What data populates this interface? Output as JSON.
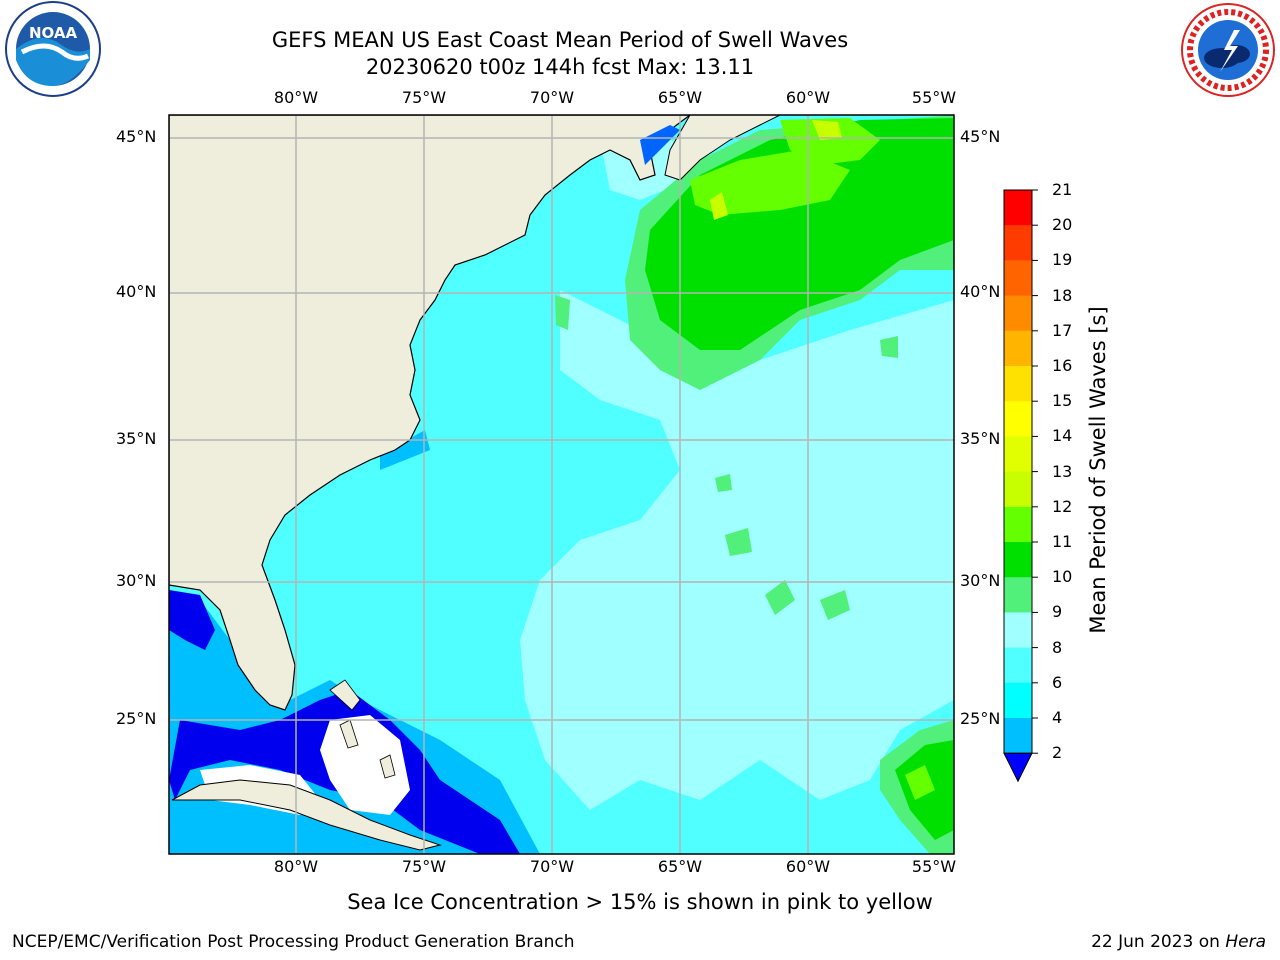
{
  "title_line1": "GEFS MEAN US East Coast Mean Period of Swell Waves",
  "title_line2": "20230620 t00z 144h fcst   Max: 13.11",
  "lon_labels": [
    "80°W",
    "75°W",
    "70°W",
    "65°W",
    "60°W",
    "55°W"
  ],
  "lat_labels": [
    "45°N",
    "40°N",
    "35°N",
    "30°N",
    "25°N"
  ],
  "colorbar": {
    "title": "Mean Period of Swell Waves [s]",
    "ticks": [
      "21",
      "20",
      "19",
      "18",
      "17",
      "16",
      "15",
      "14",
      "13",
      "12",
      "11",
      "10",
      "9",
      "8",
      "6",
      "4",
      "2"
    ],
    "colors": [
      "#ff0000",
      "#ff3c00",
      "#ff6400",
      "#ff8c00",
      "#ffb400",
      "#ffe100",
      "#ffff00",
      "#e1ff00",
      "#c8ff00",
      "#64ff00",
      "#00e000",
      "#50f07a",
      "#a0ffff",
      "#50ffff",
      "#00ffff",
      "#00bfff",
      "#0064ff"
    ],
    "extend_color": "#0000ff"
  },
  "subtitle": "Sea Ice Concentration > 15% is shown in pink to yellow",
  "footer_left": "NCEP/EMC/Verification Post Processing Product Generation Branch",
  "footer_right_date": "22 Jun 2023 on ",
  "footer_right_host": "Hera",
  "logos": {
    "left": "noaa-logo",
    "right": "nws-logo"
  },
  "map_colors": {
    "land": "#efeddc",
    "grid": "#b4b4b4",
    "swell_2_4": "#0000ee",
    "swell_4_6": "#00bfff",
    "swell_6_8": "#50ffff",
    "swell_8_9": "#a0ffff",
    "swell_9_10": "#50f07a",
    "swell_10_11": "#00e000",
    "swell_11_12": "#64ff00",
    "swell_12_13": "#c8ff00"
  }
}
